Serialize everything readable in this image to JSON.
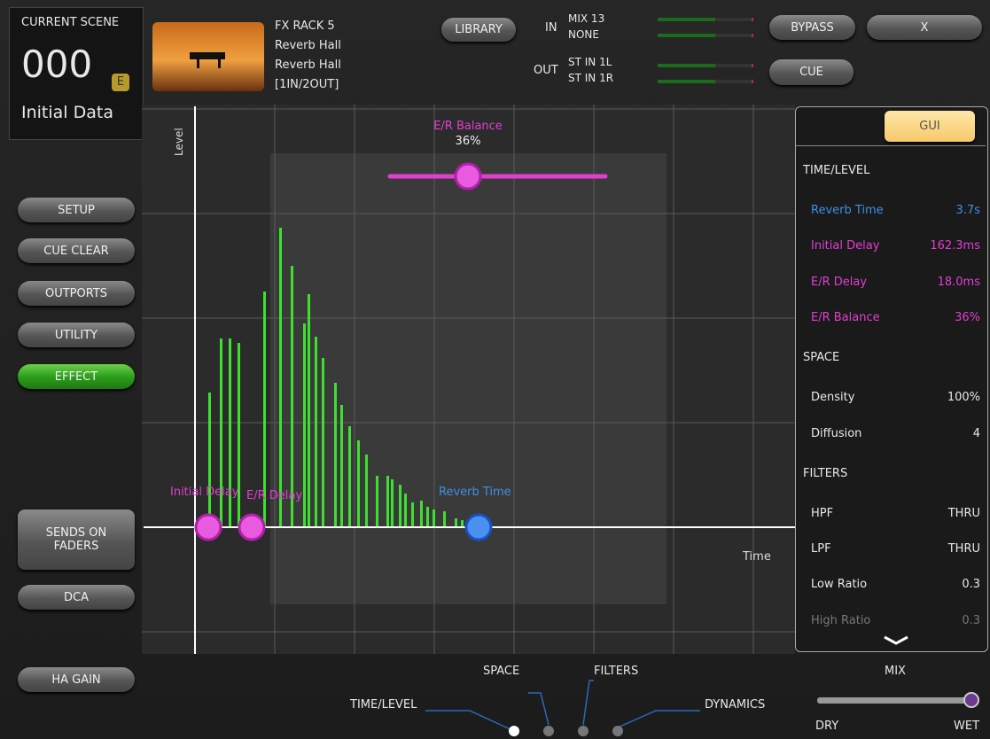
{
  "scene": {
    "label": "CURRENT SCENE",
    "number": "000",
    "badge": "E",
    "name": "Initial Data"
  },
  "effect": {
    "rack": "FX RACK 5",
    "type": "Reverb Hall",
    "preset": "Reverb Hall",
    "io": "[1IN/2OUT]"
  },
  "header": {
    "library": "LIBRARY",
    "in_label": "IN",
    "in": [
      "MIX 13",
      "NONE"
    ],
    "out_label": "OUT",
    "out": [
      "ST IN 1L",
      "ST IN 1R"
    ],
    "bypass": "BYPASS",
    "close": "X",
    "cue": "CUE"
  },
  "sidebar": [
    "SETUP",
    "CUE CLEAR",
    "OUTPORTS",
    "UTILITY",
    "EFFECT",
    "SENDS ON FADERS",
    "DCA",
    "HA GAIN"
  ],
  "graph": {
    "y_axis": "Level",
    "x_axis": "Time",
    "balance_label": "E/R Balance",
    "balance_value": "36%",
    "handles": [
      "Initial Delay",
      "E/R Delay",
      "Reverb Time"
    ]
  },
  "panel": {
    "gui": "GUI",
    "sections": [
      {
        "title": "TIME/LEVEL",
        "params": [
          {
            "name": "Reverb Time",
            "value": "3.7s",
            "color": "#3d8fe8"
          },
          {
            "name": "Initial Delay",
            "value": "162.3ms",
            "color": "#e23fd0"
          },
          {
            "name": "E/R Delay",
            "value": "18.0ms",
            "color": "#e23fd0"
          },
          {
            "name": "E/R Balance",
            "value": "36%",
            "color": "#e23fd0"
          }
        ]
      },
      {
        "title": "SPACE",
        "params": [
          {
            "name": "Density",
            "value": "100%",
            "color": "#e8e8e8"
          },
          {
            "name": "Diffusion",
            "value": "4",
            "color": "#e8e8e8"
          }
        ]
      },
      {
        "title": "FILTERS",
        "params": [
          {
            "name": "HPF",
            "value": "THRU",
            "color": "#e8e8e8"
          },
          {
            "name": "LPF",
            "value": "THRU",
            "color": "#e8e8e8"
          },
          {
            "name": "Low Ratio",
            "value": "0.3",
            "color": "#e8e8e8"
          },
          {
            "name": "High Ratio",
            "value": "0.3",
            "color": "#777777"
          }
        ]
      }
    ]
  },
  "tabs": [
    "TIME/LEVEL",
    "SPACE",
    "FILTERS",
    "DYNAMICS"
  ],
  "mix": {
    "label": "MIX",
    "dry": "DRY",
    "wet": "WET"
  }
}
